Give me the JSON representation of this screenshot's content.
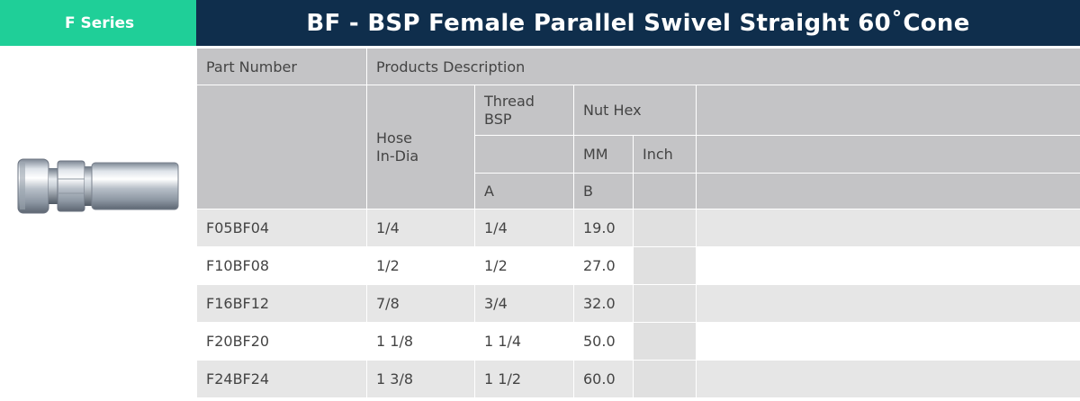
{
  "series_badge": "F Series",
  "title": "BF - BSP Female Parallel Swivel Straight 60˚Cone",
  "table": {
    "col_part_number": "Part Number",
    "col_products_description": "Products Description",
    "hose_line1": "Hose",
    "hose_line2": "In-Dia",
    "thread_line1": "Thread",
    "thread_line2": "BSP",
    "nut_hex": "Nut Hex",
    "mm": "MM",
    "inch": "Inch",
    "a": "A",
    "b": "B",
    "rows": [
      {
        "part": "F05BF04",
        "hose": "1/4",
        "thread": "1/4",
        "mm": "19.0",
        "inch": ""
      },
      {
        "part": "F10BF08",
        "hose": "1/2",
        "thread": "1/2",
        "mm": "27.0",
        "inch": ""
      },
      {
        "part": "F16BF12",
        "hose": "7/8",
        "thread": "3/4",
        "mm": "32.0",
        "inch": ""
      },
      {
        "part": "F20BF20",
        "hose": "1 1/8",
        "thread": "1 1/4",
        "mm": "50.0",
        "inch": ""
      },
      {
        "part": "F24BF24",
        "hose": "1 3/8",
        "thread": "1 1/2",
        "mm": "60.0",
        "inch": ""
      }
    ]
  },
  "colors": {
    "badge_green": "#1fcf98",
    "title_navy": "#0f2e4c",
    "header_gray": "#c4c4c6",
    "row_shade": "#e6e6e6"
  },
  "product_image_icon": "hose-fitting-icon"
}
